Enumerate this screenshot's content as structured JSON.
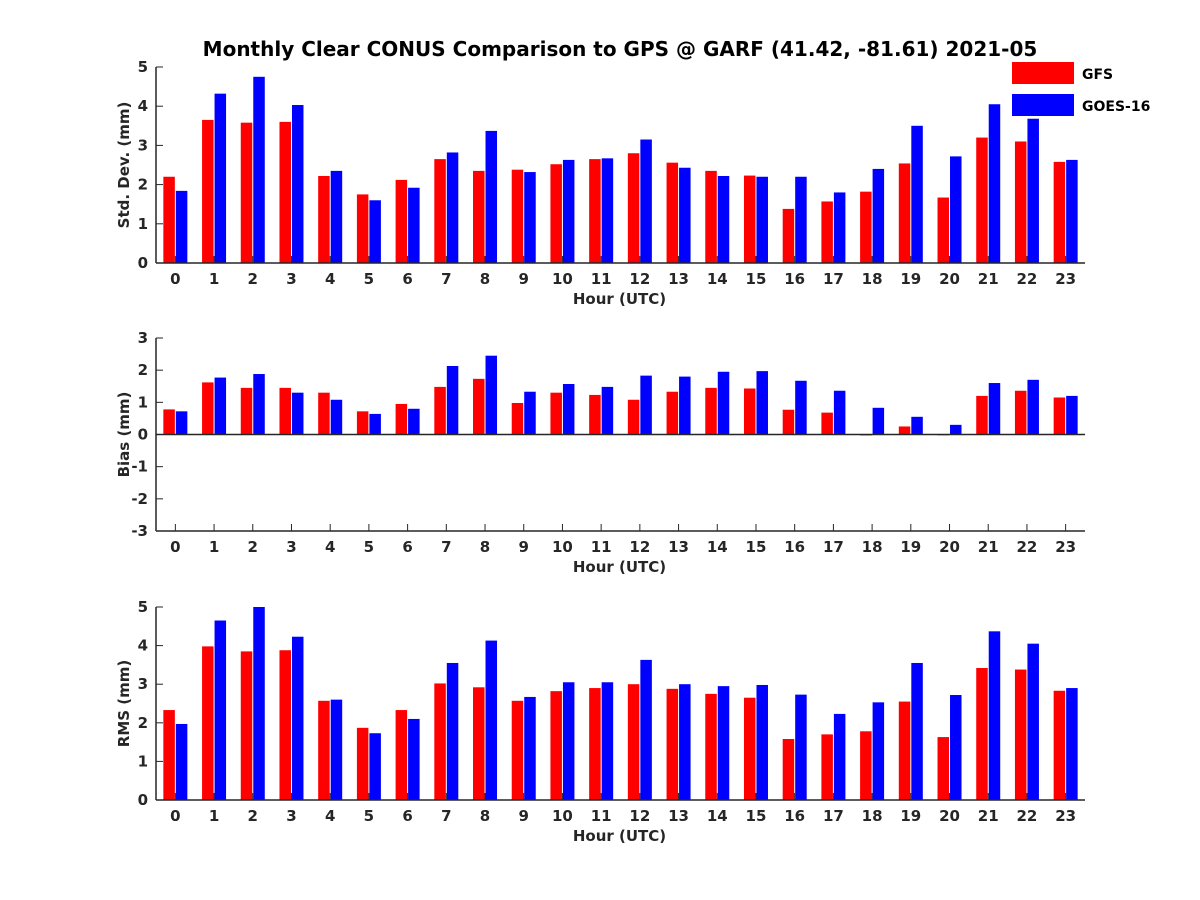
{
  "figure": {
    "title": "Monthly Clear CONUS Comparison to GPS @ GARF (41.42, -81.61) 2021-05",
    "legend": {
      "placement": "top-right",
      "items": [
        {
          "label": "GFS",
          "color": "#ff0000"
        },
        {
          "label": "GOES-16",
          "color": "#0000ff"
        }
      ]
    }
  },
  "chart_data": [
    {
      "type": "bar",
      "categories": [
        "0",
        "1",
        "2",
        "3",
        "4",
        "5",
        "6",
        "7",
        "8",
        "9",
        "10",
        "11",
        "12",
        "13",
        "14",
        "15",
        "16",
        "17",
        "18",
        "19",
        "20",
        "21",
        "22",
        "23"
      ],
      "xlabel": "Hour (UTC)",
      "ylabel": "Std. Dev. (mm)",
      "ylim": [
        0,
        5
      ],
      "yticks": [
        "0",
        "1",
        "2",
        "3",
        "4",
        "5"
      ],
      "grid": false,
      "series": [
        {
          "name": "GFS",
          "color": "#ff0000",
          "values": [
            2.2,
            3.65,
            3.58,
            3.6,
            2.22,
            1.75,
            2.12,
            2.65,
            2.35,
            2.38,
            2.52,
            2.65,
            2.8,
            2.56,
            2.35,
            2.23,
            1.38,
            1.57,
            1.82,
            2.54,
            1.67,
            3.2,
            3.1,
            2.58
          ]
        },
        {
          "name": "GOES-16",
          "color": "#0000ff",
          "values": [
            1.84,
            4.32,
            4.75,
            4.03,
            2.35,
            1.6,
            1.92,
            2.82,
            3.37,
            2.32,
            2.63,
            2.67,
            3.15,
            2.43,
            2.22,
            2.2,
            2.2,
            1.8,
            2.4,
            3.5,
            2.72,
            4.05,
            3.68,
            2.63
          ]
        }
      ]
    },
    {
      "type": "bar",
      "categories": [
        "0",
        "1",
        "2",
        "3",
        "4",
        "5",
        "6",
        "7",
        "8",
        "9",
        "10",
        "11",
        "12",
        "13",
        "14",
        "15",
        "16",
        "17",
        "18",
        "19",
        "20",
        "21",
        "22",
        "23"
      ],
      "xlabel": "Hour (UTC)",
      "ylabel": "Bias (mm)",
      "ylim": [
        -3,
        3
      ],
      "yticks": [
        "-3",
        "-2",
        "-1",
        "0",
        "1",
        "2",
        "3"
      ],
      "grid": false,
      "series": [
        {
          "name": "GFS",
          "color": "#ff0000",
          "values": [
            0.78,
            1.62,
            1.45,
            1.45,
            1.3,
            0.72,
            0.95,
            1.48,
            1.73,
            0.98,
            1.3,
            1.23,
            1.08,
            1.33,
            1.45,
            1.43,
            0.77,
            0.68,
            -0.03,
            0.25,
            0.0,
            1.2,
            1.36,
            1.15
          ]
        },
        {
          "name": "GOES-16",
          "color": "#0000ff",
          "values": [
            0.72,
            1.77,
            1.88,
            1.3,
            1.08,
            0.64,
            0.8,
            2.13,
            2.45,
            1.33,
            1.57,
            1.48,
            1.83,
            1.8,
            1.95,
            1.97,
            1.67,
            1.36,
            0.83,
            0.55,
            0.3,
            1.6,
            1.7,
            1.2
          ]
        }
      ]
    },
    {
      "type": "bar",
      "categories": [
        "0",
        "1",
        "2",
        "3",
        "4",
        "5",
        "6",
        "7",
        "8",
        "9",
        "10",
        "11",
        "12",
        "13",
        "14",
        "15",
        "16",
        "17",
        "18",
        "19",
        "20",
        "21",
        "22",
        "23"
      ],
      "xlabel": "Hour (UTC)",
      "ylabel": "RMS (mm)",
      "ylim": [
        0,
        5
      ],
      "yticks": [
        "0",
        "1",
        "2",
        "3",
        "4",
        "5"
      ],
      "grid": false,
      "series": [
        {
          "name": "GFS",
          "color": "#ff0000",
          "values": [
            2.33,
            3.98,
            3.85,
            3.88,
            2.57,
            1.87,
            2.33,
            3.02,
            2.92,
            2.57,
            2.82,
            2.9,
            3.0,
            2.88,
            2.75,
            2.65,
            1.58,
            1.7,
            1.78,
            2.55,
            1.63,
            3.42,
            3.38,
            2.83
          ]
        },
        {
          "name": "GOES-16",
          "color": "#0000ff",
          "values": [
            1.97,
            4.65,
            5.0,
            4.23,
            2.6,
            1.73,
            2.1,
            3.55,
            4.13,
            2.67,
            3.05,
            3.05,
            3.63,
            3.0,
            2.95,
            2.98,
            2.73,
            2.23,
            2.53,
            3.55,
            2.72,
            4.37,
            4.05,
            2.9
          ]
        }
      ]
    }
  ]
}
